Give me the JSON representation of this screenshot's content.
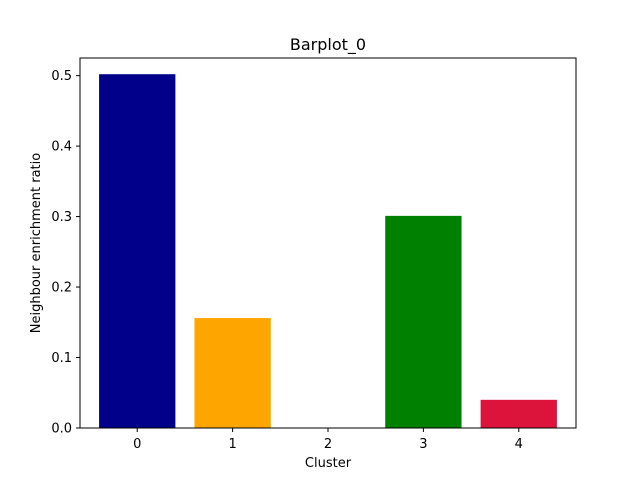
{
  "chart_data": {
    "type": "bar",
    "title": "Barplot_0",
    "xlabel": "Cluster",
    "ylabel": "Neighbour enrichment ratio",
    "categories": [
      "0",
      "1",
      "2",
      "3",
      "4"
    ],
    "values": [
      0.502,
      0.156,
      0.0,
      0.301,
      0.04
    ],
    "colors": [
      "#00008b",
      "#ffa500",
      "#0000ff",
      "#008000",
      "#dc143c"
    ],
    "ylim": [
      0,
      0.525
    ],
    "yticks": [
      0.0,
      0.1,
      0.2,
      0.3,
      0.4,
      0.5
    ],
    "ytick_labels": [
      "0.0",
      "0.1",
      "0.2",
      "0.3",
      "0.4",
      "0.5"
    ],
    "grid": false,
    "legend": "none"
  }
}
